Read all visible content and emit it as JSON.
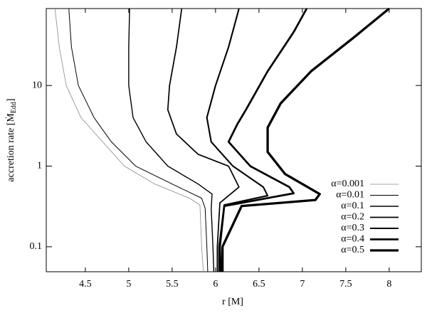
{
  "chart_data": {
    "type": "line",
    "xlabel": "r [M]",
    "ylabel": [
      "accretion rate [Ṁ",
      "Edd",
      "]"
    ],
    "xlim": [
      4.05,
      8.37
    ],
    "ylim": [
      0.049,
      90
    ],
    "xticks": [
      4.5,
      5,
      5.5,
      6,
      6.5,
      7,
      7.5,
      8
    ],
    "yticks": [
      0.1,
      1,
      10
    ],
    "ylog": true,
    "legend": "lower right",
    "series": [
      {
        "name": "α=0.001",
        "color": "#888888",
        "width": 0.8,
        "x": [
          4.15,
          4.2,
          4.28,
          4.45,
          4.7,
          4.95,
          5.3,
          5.7,
          5.82,
          5.84,
          5.86
        ],
        "values": [
          90,
          30,
          10,
          4,
          2,
          1,
          0.6,
          0.4,
          0.33,
          0.1,
          0.049
        ]
      },
      {
        "name": "α=0.01",
        "color": "#000000",
        "width": 1,
        "x": [
          4.31,
          4.34,
          4.42,
          4.6,
          4.8,
          5.08,
          5.5,
          5.84,
          5.88,
          5.9,
          5.91
        ],
        "values": [
          90,
          30,
          10,
          4,
          2,
          1,
          0.6,
          0.4,
          0.3,
          0.1,
          0.049
        ]
      },
      {
        "name": "α=0.1",
        "color": "#000000",
        "width": 1.4,
        "x": [
          5.01,
          5.0,
          5.0,
          5.05,
          5.2,
          5.45,
          5.8,
          5.96,
          5.95,
          5.97,
          5.98
        ],
        "values": [
          90,
          30,
          10,
          4,
          2,
          1,
          0.6,
          0.45,
          0.3,
          0.1,
          0.049
        ]
      },
      {
        "name": "α=0.2",
        "color": "#000000",
        "width": 1.7,
        "x": [
          5.61,
          5.55,
          5.47,
          5.45,
          5.55,
          5.8,
          6.15,
          6.27,
          6.05,
          6.02,
          6.02
        ],
        "values": [
          90,
          30,
          10,
          5,
          2.5,
          1.4,
          1,
          0.55,
          0.35,
          0.1,
          0.049
        ]
      },
      {
        "name": "α=0.3",
        "color": "#000000",
        "width": 2.1,
        "x": [
          6.27,
          6.15,
          6.0,
          5.9,
          5.95,
          6.2,
          6.55,
          6.6,
          6.1,
          6.04,
          6.04
        ],
        "values": [
          90,
          30,
          10,
          4,
          2,
          1,
          0.55,
          0.43,
          0.33,
          0.1,
          0.049
        ]
      },
      {
        "name": "α=0.4",
        "color": "#000000",
        "width": 2.7,
        "x": [
          7.05,
          6.9,
          6.6,
          6.35,
          6.25,
          6.15,
          6.4,
          6.85,
          6.9,
          6.1,
          6.05,
          6.06
        ],
        "values": [
          90,
          46,
          15,
          5,
          3.3,
          2,
          1,
          0.55,
          0.46,
          0.32,
          0.1,
          0.049
        ]
      },
      {
        "name": "α=0.5",
        "color": "#000000",
        "width": 3.3,
        "x": [
          8.0,
          7.6,
          7.1,
          6.75,
          6.6,
          6.6,
          6.8,
          7.2,
          7.15,
          6.3,
          6.08,
          6.08
        ],
        "values": [
          90,
          40,
          15,
          6,
          3,
          1.5,
          0.8,
          0.45,
          0.38,
          0.32,
          0.1,
          0.049
        ]
      }
    ]
  }
}
